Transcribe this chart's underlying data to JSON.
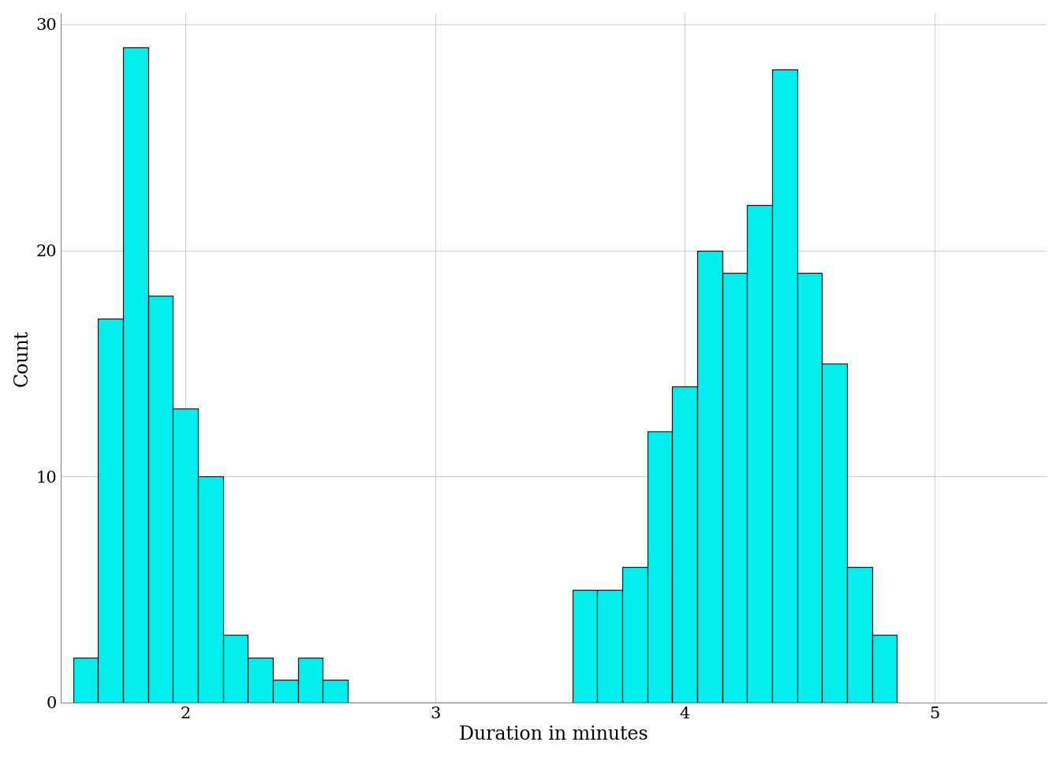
{
  "title": "",
  "xlabel": "Duration in minutes",
  "ylabel": "Count",
  "bar_color": "#00EEEE",
  "edge_color": "#1a1a1a",
  "background_color": "#FFFFFF",
  "panel_background": "#FFFFFF",
  "grid_color": "#C8C8C8",
  "bin_width": 0.1,
  "bin_start": 1.55,
  "bin_counts": [
    2,
    17,
    29,
    18,
    13,
    10,
    3,
    2,
    1,
    2,
    1,
    0,
    0,
    0,
    0,
    0,
    0,
    0,
    0,
    0,
    5,
    5,
    6,
    12,
    14,
    20,
    19,
    22,
    28,
    19,
    15,
    6,
    3
  ],
  "xlim": [
    1.5,
    5.45
  ],
  "ylim": [
    0,
    30.5
  ],
  "yticks": [
    0,
    10,
    20,
    30
  ],
  "xticks": [
    2,
    3,
    4,
    5
  ],
  "axis_label_fontsize": 17,
  "tick_fontsize": 15,
  "edge_linewidth": 0.9
}
